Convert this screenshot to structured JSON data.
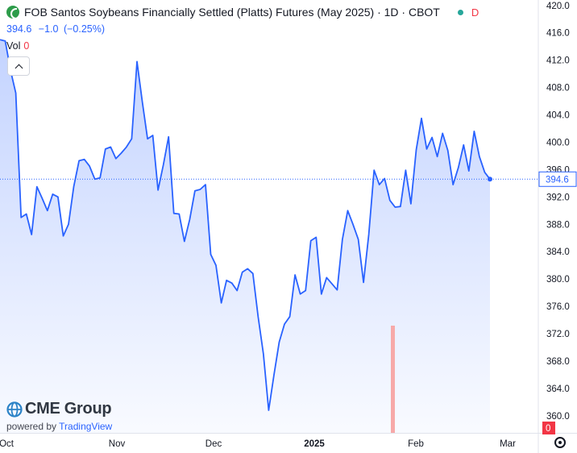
{
  "header": {
    "title": "FOB Santos Soybeans Financially Settled (Platts) Futures (May 2025) · 1D · CBOT",
    "status_letter": "D",
    "status_color": "#26a69a"
  },
  "quote": {
    "last": "394.6",
    "change": "−1.0",
    "change_pct": "(−0.25%)"
  },
  "volume": {
    "label": "Vol",
    "value": "0"
  },
  "branding": {
    "logo": "CME Group",
    "powered_by": "powered by",
    "tradingview": "TradingView"
  },
  "icons": {
    "symbol": "cme-globe-icon",
    "collapse": "chevron-up-icon",
    "settings": "gear-icon"
  },
  "chart_data": {
    "type": "area",
    "x_tick_labels": [
      "Oct",
      "Nov",
      "Dec",
      "2025",
      "Feb",
      "Mar"
    ],
    "y_ticks": [
      360.0,
      364.0,
      368.0,
      372.0,
      376.0,
      380.0,
      384.0,
      388.0,
      392.0,
      396.0,
      400.0,
      404.0,
      408.0,
      412.0,
      416.0,
      420.0
    ],
    "ylim": [
      357.5,
      420.8
    ],
    "line_color": "#2962ff",
    "area_color": "#2962ff",
    "last_value": 394.6,
    "last_value_label": "394.6",
    "volume_label": "0",
    "volume_color": "#f7a9a9",
    "series": [
      {
        "values": [
          415.0,
          414.8,
          410.5,
          407.2,
          389.0,
          389.5,
          386.5,
          393.5,
          391.8,
          390.0,
          392.4,
          392.0,
          386.3,
          388.0,
          393.5,
          397.3,
          397.5,
          396.5,
          394.6,
          394.8,
          399.0,
          399.3,
          397.6,
          398.4,
          399.3,
          400.5,
          411.8,
          406.0,
          400.5,
          401.0,
          393.0,
          396.7,
          400.8,
          389.6,
          389.5,
          385.5,
          388.7,
          392.9,
          393.1,
          393.8,
          383.6,
          382.0,
          376.5,
          379.8,
          379.4,
          378.3,
          381.0,
          381.5,
          380.8,
          374.5,
          369.0,
          360.8,
          366.0,
          370.8,
          373.4,
          374.5,
          380.6,
          377.8,
          378.3,
          385.6,
          386.1,
          377.8,
          380.2,
          379.3,
          378.4,
          385.8,
          390.0,
          388.0,
          385.8,
          379.5,
          386.5,
          395.9,
          393.8,
          394.7,
          391.5,
          390.5,
          390.6,
          395.9,
          391.0,
          398.9,
          403.5,
          399.0,
          400.7,
          397.9,
          401.3,
          398.8,
          393.8,
          396.3,
          399.6,
          395.8,
          401.6,
          397.9,
          395.6,
          394.6
        ]
      }
    ]
  }
}
